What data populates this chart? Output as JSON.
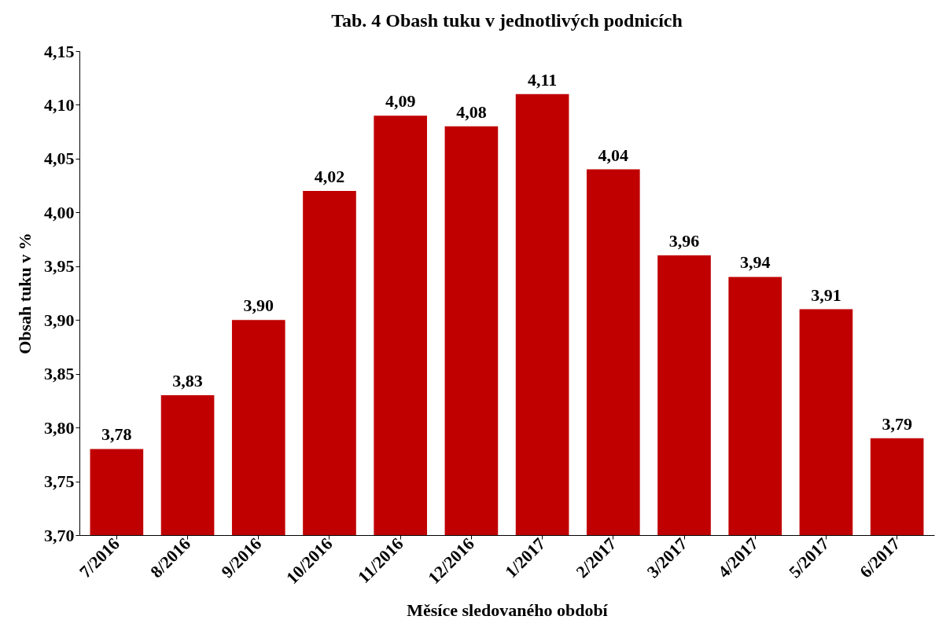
{
  "chart_data": {
    "type": "bar",
    "title": "Tab. 4 Obash tuku v jednotlivých podnicích",
    "xlabel": "Měsíce sledovaného období",
    "ylabel": "Obsah tuku v %",
    "categories": [
      "7/2016",
      "8/2016",
      "9/2016",
      "10/2016",
      "11/2016",
      "12/2016",
      "1/2017",
      "2/2017",
      "3/2017",
      "4/2017",
      "5/2017",
      "6/2017"
    ],
    "values": [
      3.78,
      3.83,
      3.9,
      4.02,
      4.09,
      4.08,
      4.11,
      4.04,
      3.96,
      3.94,
      3.91,
      3.79
    ],
    "color": "#c00000",
    "value_labels": [
      "3,78",
      "3,83",
      "3,90",
      "4,02",
      "4,09",
      "4,08",
      "4,11",
      "4,04",
      "3,96",
      "3,94",
      "3,91",
      "3,79"
    ],
    "ylim": [
      3.7,
      4.15
    ],
    "yticks": [
      {
        "value": 3.7,
        "label": "3,70"
      },
      {
        "value": 3.75,
        "label": "3,75"
      },
      {
        "value": 3.8,
        "label": "3,80"
      },
      {
        "value": 3.85,
        "label": "3,85"
      },
      {
        "value": 3.9,
        "label": "3,90"
      },
      {
        "value": 3.95,
        "label": "3,95"
      },
      {
        "value": 4.0,
        "label": "4,00"
      },
      {
        "value": 4.05,
        "label": "4,05"
      },
      {
        "value": 4.1,
        "label": "4,10"
      },
      {
        "value": 4.15,
        "label": "4,15"
      }
    ],
    "grid": false
  }
}
